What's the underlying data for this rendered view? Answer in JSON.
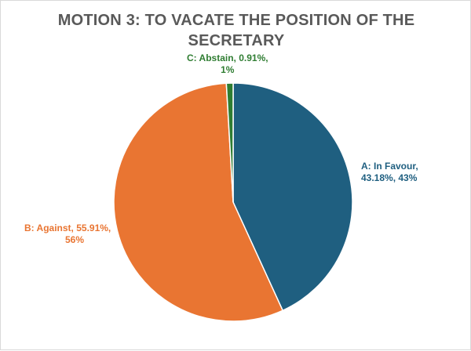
{
  "chart_data": {
    "type": "pie",
    "title_lines": [
      "MOTION 3: TO VACATE THE POSITION OF THE",
      "SECRETARY"
    ],
    "slices": [
      {
        "label": "A: In Favour",
        "percent": 43.18,
        "color": "#1f5f80",
        "label_lines": [
          "A: In Favour,",
          "43.18%, 43%"
        ]
      },
      {
        "label": "B: Against",
        "percent": 55.91,
        "color": "#e97532",
        "label_lines": [
          "B: Against, 55.91%,",
          "56%"
        ]
      },
      {
        "label": "C: Abstain",
        "percent": 0.91,
        "color": "#2f7d32",
        "label_lines": [
          "C: Abstain, 0.91%,",
          "1%"
        ]
      }
    ],
    "start_angle_deg": 0,
    "direction": "clockwise",
    "legend": "none",
    "label_colors": [
      "#1f5f80",
      "#e97532",
      "#2f7d32"
    ]
  }
}
